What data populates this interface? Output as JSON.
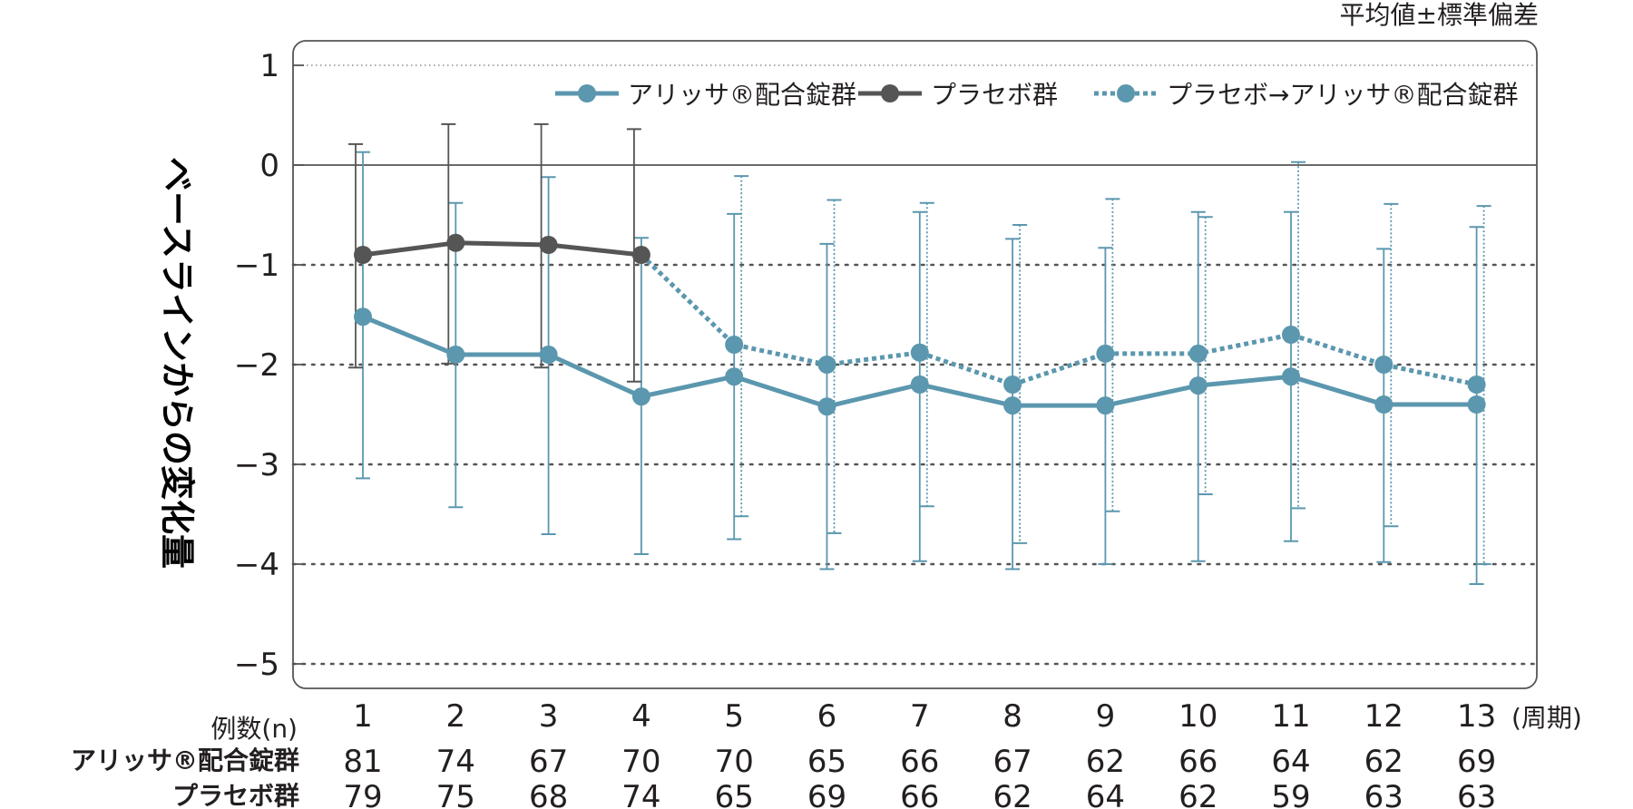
{
  "chart_data": {
    "type": "line",
    "note": "平均値±標準偏差",
    "ylabel": "ベースラインからの変化量",
    "ylim": [
      -5.25,
      1.25
    ],
    "yticks": [
      1,
      0,
      -1,
      -2,
      -3,
      -4,
      -5
    ],
    "ytick_labels": [
      "1",
      "0",
      "−1",
      "−2",
      "−3",
      "−4",
      "−5"
    ],
    "x": [
      1,
      2,
      3,
      4,
      5,
      6,
      7,
      8,
      9,
      10,
      11,
      12,
      13
    ],
    "x_unit_label": "(周期)",
    "grid": "dotted horizontal",
    "legend_position": "top-right",
    "series": [
      {
        "name": "アリッサ®配合錠群",
        "color": "#5b97ae",
        "line_style": "solid",
        "x": [
          1,
          2,
          3,
          4,
          5,
          6,
          7,
          8,
          9,
          10,
          11,
          12,
          13
        ],
        "values": [
          -1.52,
          -1.9,
          -1.9,
          -2.32,
          -2.12,
          -2.42,
          -2.2,
          -2.41,
          -2.41,
          -2.21,
          -2.12,
          -2.4,
          -2.4
        ],
        "err_low": [
          -3.14,
          -3.43,
          -3.7,
          -3.9,
          -3.75,
          -4.05,
          -3.97,
          -4.05,
          -4.0,
          -3.97,
          -3.77,
          -3.98,
          -4.2
        ],
        "err_high": [
          0.13,
          -0.38,
          -0.12,
          -0.73,
          -0.49,
          -0.79,
          -0.47,
          -0.74,
          -0.83,
          -0.47,
          -0.47,
          -0.84,
          -0.62
        ]
      },
      {
        "name": "プラセボ群",
        "color": "#555555",
        "line_style": "solid",
        "x": [
          1,
          2,
          3,
          4
        ],
        "values": [
          -0.9,
          -0.78,
          -0.8,
          -0.9
        ],
        "err_low": [
          -2.03,
          -1.99,
          -2.03,
          -2.17
        ],
        "err_high": [
          0.21,
          0.41,
          0.41,
          0.36
        ]
      },
      {
        "name": "プラセボ→アリッサ®配合錠群",
        "color": "#5b97ae",
        "line_style": "dotted",
        "x": [
          4,
          5,
          6,
          7,
          8,
          9,
          10,
          11,
          12,
          13
        ],
        "values": [
          -0.9,
          -1.8,
          -2.0,
          -1.88,
          -2.2,
          -1.89,
          -1.89,
          -1.7,
          -2.0,
          -2.2
        ],
        "err_low": [
          null,
          -3.52,
          -3.69,
          -3.42,
          -3.79,
          -3.47,
          -3.3,
          -3.44,
          -3.62,
          -4.0
        ],
        "err_high": [
          null,
          -0.11,
          -0.35,
          -0.38,
          -0.6,
          -0.34,
          -0.52,
          0.03,
          -0.39,
          -0.41
        ]
      }
    ],
    "sample_size_table": {
      "header": "例数(n)",
      "rows": [
        {
          "label": "アリッサ®配合錠群",
          "values": [
            "81",
            "74",
            "67",
            "70",
            "70",
            "65",
            "66",
            "67",
            "62",
            "66",
            "64",
            "62",
            "69"
          ]
        },
        {
          "label": "プラセボ群",
          "values": [
            "79",
            "75",
            "68",
            "74",
            "65",
            "69",
            "66",
            "62",
            "64",
            "62",
            "59",
            "63",
            "63"
          ]
        }
      ]
    }
  }
}
